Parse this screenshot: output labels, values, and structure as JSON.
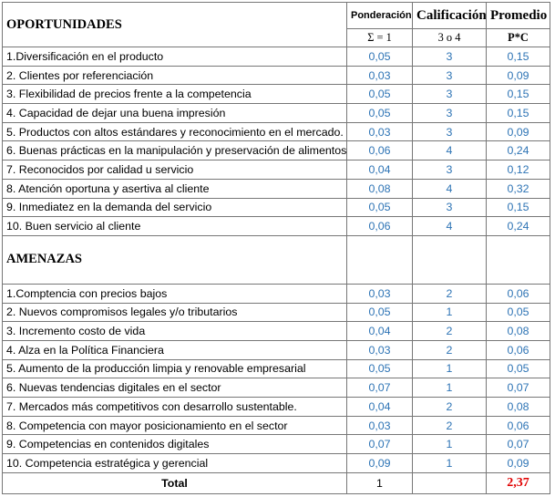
{
  "header": {
    "title": "OPORTUNIDADES",
    "columns": [
      "Ponderación",
      "Calificación",
      "Promedio"
    ],
    "subheaders": [
      "Σ = 1",
      "3 o 4",
      "P*C"
    ]
  },
  "oportunidades": {
    "rows": [
      [
        "1.Diversificación en el producto",
        "0,05",
        "3",
        "0,15"
      ],
      [
        "2. Clientes por referenciación",
        "0,03",
        "3",
        "0,09"
      ],
      [
        "3. Flexibilidad de precios frente a la competencia",
        "0,05",
        "3",
        "0,15"
      ],
      [
        "4. Capacidad de dejar una buena impresión",
        "0,05",
        "3",
        "0,15"
      ],
      [
        "5. Productos con altos estándares y reconocimiento en el mercado.",
        "0,03",
        "3",
        "0,09"
      ],
      [
        "6. Buenas prácticas en la manipulación y preservación de alimentos.",
        "0,06",
        "4",
        "0,24"
      ],
      [
        "7. Reconocidos por calidad u servicio",
        "0,04",
        "3",
        "0,12"
      ],
      [
        "8. Atención oportuna y asertiva al cliente",
        "0,08",
        "4",
        "0,32"
      ],
      [
        "9. Inmediatez en la demanda del servicio",
        "0,05",
        "3",
        "0,15"
      ],
      [
        "10. Buen servicio al cliente",
        "0,06",
        "4",
        "0,24"
      ]
    ]
  },
  "amenazas": {
    "title": "AMENAZAS",
    "rows": [
      [
        "1.Comptencia con precios bajos",
        "0,03",
        "2",
        "0,06"
      ],
      [
        "2. Nuevos compromisos legales y/o tributarios",
        "0,05",
        "1",
        "0,05"
      ],
      [
        "3. Incremento costo de vida",
        "0,04",
        "2",
        "0,08"
      ],
      [
        "4. Alza en la Política Financiera",
        "0,03",
        "2",
        "0,06"
      ],
      [
        "5. Aumento de la producción limpia y renovable empresarial",
        "0,05",
        "1",
        "0,05"
      ],
      [
        "6. Nuevas tendencias digitales en el sector",
        "0,07",
        "1",
        "0,07"
      ],
      [
        "7. Mercados más competitivos con desarrollo sustentable.",
        "0,04",
        "2",
        "0,08"
      ],
      [
        "8. Competencia con mayor posicionamiento en el sector",
        "0,03",
        "2",
        "0,06"
      ],
      [
        "9. Competencias en contenidos digitales",
        "0,07",
        "1",
        "0,07"
      ],
      [
        "10. Competencia estratégica y gerencial",
        "0,09",
        "1",
        "0,09"
      ]
    ]
  },
  "total": {
    "label": "Total",
    "ponderacion": "1",
    "promedio": "2,37"
  }
}
